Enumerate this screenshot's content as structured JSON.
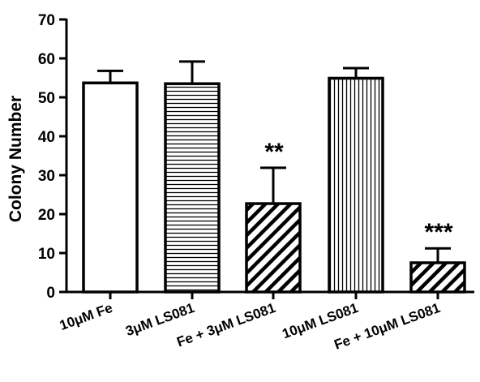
{
  "chart_data": {
    "type": "bar",
    "title": "",
    "xlabel": "",
    "ylabel": "Colony Number",
    "ylim": [
      0,
      70
    ],
    "yticks": [
      0,
      10,
      20,
      30,
      40,
      50,
      60,
      70
    ],
    "grid": false,
    "categories": [
      "10μM Fe",
      "3μM LS081",
      "Fe + 3μM LS081",
      "10μM LS081",
      "Fe + 10μM LS081"
    ],
    "values": [
      53.7,
      53.5,
      22.7,
      54.9,
      7.5
    ],
    "error_upper": [
      56.8,
      59.2,
      31.9,
      57.5,
      11.2
    ],
    "patterns": [
      "solid-white",
      "horizontal-lines",
      "diagonal-thick",
      "vertical-lines",
      "diagonal-thick"
    ],
    "significance": [
      "",
      "",
      "**",
      "",
      "***"
    ],
    "colors": {
      "bar_stroke": "#000000",
      "fill": "#ffffff",
      "ink": "#000000"
    }
  }
}
